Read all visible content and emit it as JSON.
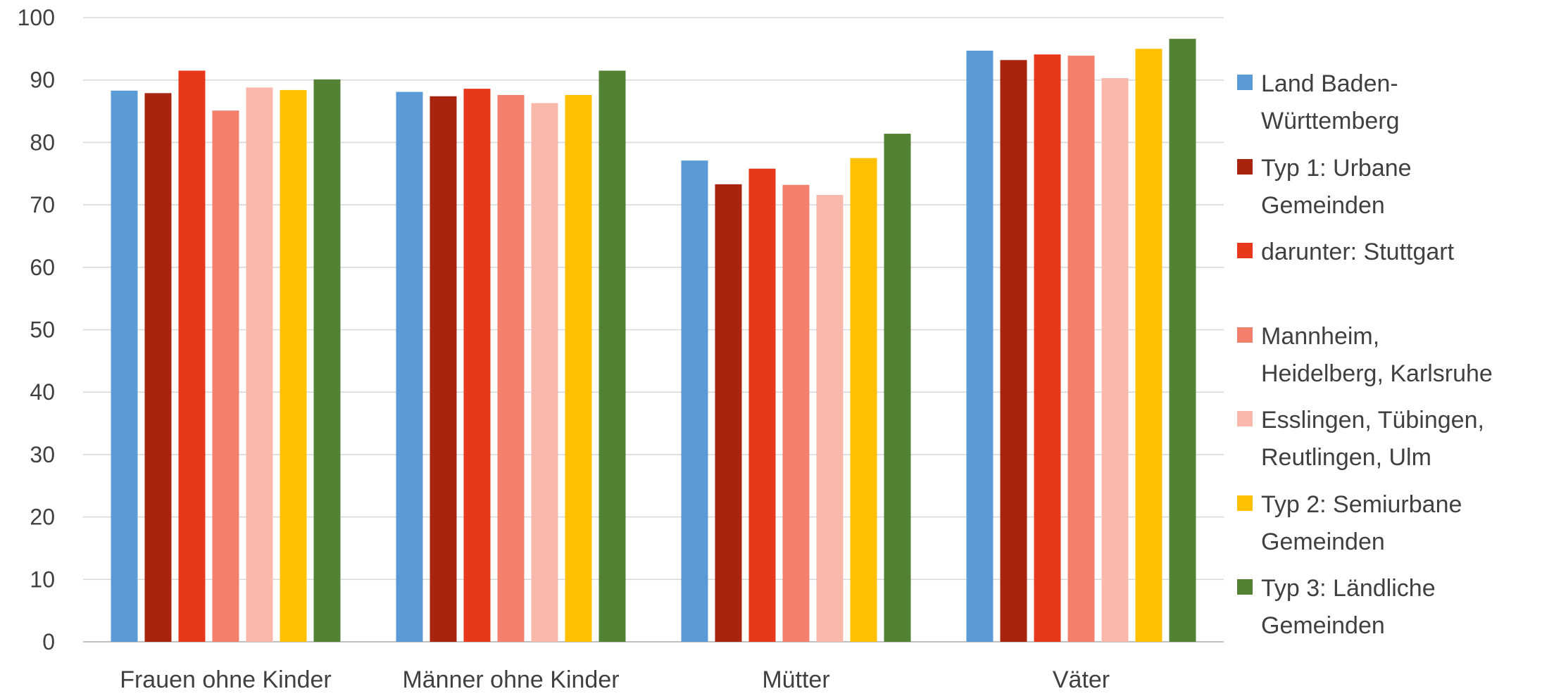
{
  "chart_data": {
    "type": "bar",
    "title": "",
    "xlabel": "",
    "ylabel": "",
    "ylim": [
      0,
      100
    ],
    "yticks": [
      0,
      10,
      20,
      30,
      40,
      50,
      60,
      70,
      80,
      90,
      100
    ],
    "grid": true,
    "legend_position": "right",
    "categories": [
      "Frauen ohne Kinder",
      "Männer ohne Kinder",
      "Mütter",
      "Väter"
    ],
    "series": [
      {
        "name": "Land Baden-Württemberg",
        "legend_lines": [
          "Land Baden-",
          "Württemberg"
        ],
        "color": "#5B9BD5",
        "values": [
          88.3,
          88.1,
          77.1,
          94.7
        ]
      },
      {
        "name": "Typ 1: Urbane Gemeinden",
        "legend_lines": [
          "Typ 1: Urbane",
          "Gemeinden"
        ],
        "color": "#A9240F",
        "values": [
          87.9,
          87.4,
          73.3,
          93.2
        ]
      },
      {
        "name": "darunter: Stuttgart",
        "legend_lines": [
          "darunter: Stuttgart"
        ],
        "color": "#E8381B",
        "values": [
          91.5,
          88.6,
          75.8,
          94.1
        ]
      },
      {
        "name": "Mannheim, Heidelberg, Karlsruhe",
        "legend_lines": [
          "Mannheim,",
          "Heidelberg, Karlsruhe"
        ],
        "color": "#F2806D",
        "values": [
          85.1,
          87.6,
          73.2,
          93.9
        ]
      },
      {
        "name": "Esslingen, Tübingen, Reutlingen, Ulm",
        "legend_lines": [
          "Esslingen, Tübingen,",
          "Reutlingen, Ulm"
        ],
        "color": "#F8B8AB",
        "values": [
          88.8,
          86.3,
          71.6,
          90.3
        ]
      },
      {
        "name": "Typ 2: Semiurbane Gemeinden",
        "legend_lines": [
          "Typ 2: Semiurbane",
          "Gemeinden"
        ],
        "color": "#FFC000",
        "values": [
          88.4,
          87.6,
          77.5,
          95.0
        ]
      },
      {
        "name": "Typ 3: Ländliche Gemeinden",
        "legend_lines": [
          "Typ 3: Ländliche",
          "Gemeinden"
        ],
        "color": "#548235",
        "values": [
          90.1,
          91.5,
          81.4,
          96.6
        ]
      }
    ]
  }
}
